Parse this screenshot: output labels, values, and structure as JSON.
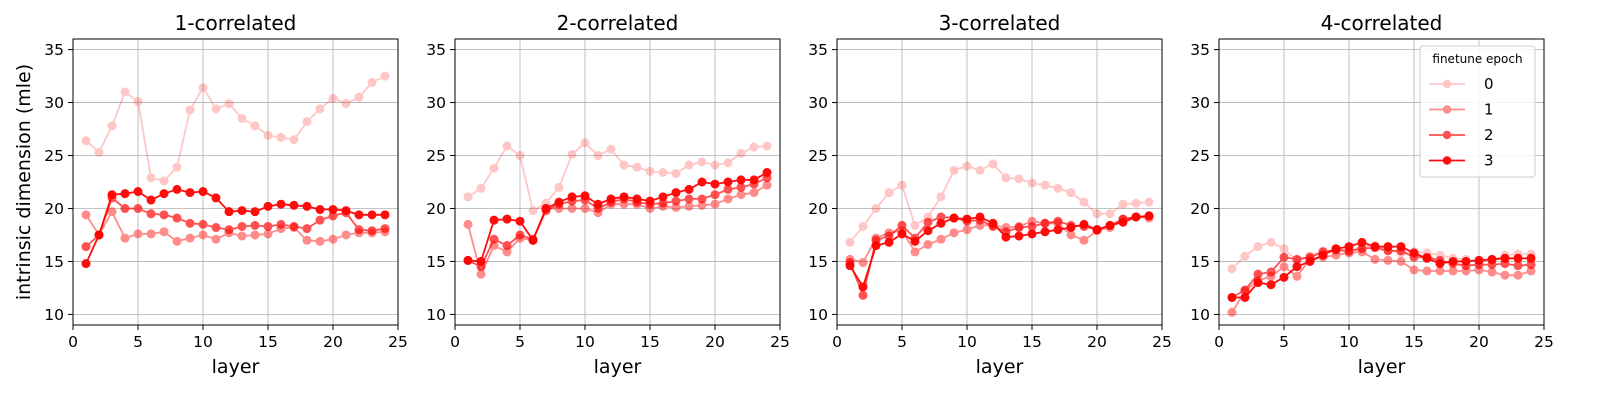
{
  "chart_data": {
    "type": "line",
    "ylabel": "intrinsic dimension (mle)",
    "xlabel": "layer",
    "xlim": [
      0,
      25
    ],
    "ylim": [
      9,
      36
    ],
    "xticks": [
      0,
      5,
      10,
      15,
      20,
      25
    ],
    "yticks": [
      10,
      15,
      20,
      25,
      30,
      35
    ],
    "grid": true,
    "color": "#ff0000",
    "series_alpha": [
      0.22,
      0.45,
      0.68,
      0.95
    ],
    "legend": {
      "title": "finetune epoch",
      "placement": "upper-right of 4-correlated panel",
      "entries": [
        "0",
        "1",
        "2",
        "3"
      ]
    },
    "x": [
      1,
      2,
      3,
      4,
      5,
      6,
      7,
      8,
      9,
      10,
      11,
      12,
      13,
      14,
      15,
      16,
      17,
      18,
      19,
      20,
      21,
      22,
      23,
      24
    ],
    "panels": [
      {
        "title": "1-correlated",
        "series": [
          {
            "name": "0",
            "values": [
              26.4,
              25.3,
              27.8,
              31.0,
              30.1,
              22.9,
              22.6,
              23.9,
              29.3,
              31.4,
              29.4,
              29.9,
              28.5,
              27.8,
              26.9,
              26.7,
              26.5,
              28.2,
              29.4,
              30.4,
              29.9,
              30.5,
              31.9,
              32.5
            ]
          },
          {
            "name": "1",
            "values": [
              19.4,
              17.5,
              19.7,
              17.2,
              17.6,
              17.6,
              17.8,
              16.9,
              17.2,
              17.5,
              17.1,
              17.7,
              17.4,
              17.5,
              17.6,
              18.1,
              18.2,
              17.0,
              16.9,
              17.1,
              17.5,
              17.7,
              17.7,
              17.8
            ]
          },
          {
            "name": "2",
            "values": [
              16.4,
              17.5,
              21.0,
              20.0,
              20.0,
              19.5,
              19.4,
              19.1,
              18.6,
              18.5,
              18.2,
              18.0,
              18.3,
              18.4,
              18.3,
              18.5,
              18.3,
              18.1,
              18.9,
              19.3,
              19.6,
              18.0,
              17.9,
              18.1
            ]
          },
          {
            "name": "3",
            "values": [
              14.8,
              17.5,
              21.3,
              21.4,
              21.6,
              20.8,
              21.4,
              21.8,
              21.5,
              21.6,
              21.0,
              19.7,
              19.8,
              19.7,
              20.2,
              20.4,
              20.3,
              20.2,
              19.9,
              19.9,
              19.8,
              19.4,
              19.4,
              19.4
            ]
          }
        ]
      },
      {
        "title": "2-correlated",
        "series": [
          {
            "name": "0",
            "values": [
              21.1,
              21.9,
              23.8,
              25.9,
              25.0,
              19.8,
              20.5,
              22.0,
              25.1,
              26.2,
              25.0,
              25.6,
              24.1,
              23.9,
              23.5,
              23.4,
              23.3,
              24.1,
              24.4,
              24.1,
              24.3,
              25.2,
              25.8,
              25.9
            ]
          },
          {
            "name": "1",
            "values": [
              18.5,
              13.8,
              16.5,
              15.9,
              17.2,
              17.0,
              20.0,
              20.0,
              20.0,
              20.0,
              19.6,
              20.4,
              20.4,
              20.4,
              20.0,
              20.2,
              20.1,
              20.2,
              20.3,
              20.4,
              20.9,
              21.3,
              21.5,
              22.2
            ]
          },
          {
            "name": "2",
            "values": [
              15.1,
              14.5,
              17.1,
              16.5,
              17.5,
              17.1,
              19.8,
              20.4,
              20.7,
              20.8,
              20.0,
              20.6,
              20.9,
              20.6,
              20.4,
              20.5,
              20.7,
              20.9,
              20.9,
              21.3,
              21.8,
              22.0,
              22.3,
              22.9
            ]
          },
          {
            "name": "3",
            "values": [
              15.1,
              15.0,
              18.9,
              19.0,
              18.8,
              17.0,
              20.0,
              20.6,
              21.1,
              21.2,
              20.4,
              20.9,
              21.1,
              20.9,
              20.7,
              21.1,
              21.5,
              21.8,
              22.5,
              22.3,
              22.5,
              22.7,
              22.7,
              23.4
            ]
          }
        ]
      },
      {
        "title": "3-correlated",
        "series": [
          {
            "name": "0",
            "values": [
              16.8,
              18.3,
              20.0,
              21.5,
              22.2,
              18.4,
              19.2,
              21.1,
              23.6,
              24.0,
              23.6,
              24.2,
              22.9,
              22.8,
              22.4,
              22.2,
              21.9,
              21.5,
              20.6,
              19.5,
              19.5,
              20.4,
              20.5,
              20.6
            ]
          },
          {
            "name": "1",
            "values": [
              15.2,
              14.9,
              17.2,
              17.7,
              17.9,
              15.9,
              16.6,
              17.1,
              17.7,
              18.0,
              18.4,
              18.4,
              18.2,
              18.3,
              18.8,
              18.6,
              18.6,
              17.5,
              17.0,
              17.9,
              18.2,
              19.0,
              19.2,
              19.1
            ]
          },
          {
            "name": "2",
            "values": [
              14.9,
              11.8,
              17.0,
              17.4,
              18.4,
              17.2,
              18.7,
              19.2,
              19.1,
              18.8,
              18.9,
              18.3,
              17.8,
              18.2,
              18.3,
              18.6,
              18.8,
              18.4,
              18.3,
              18.0,
              18.4,
              19.0,
              19.2,
              19.3
            ]
          },
          {
            "name": "3",
            "values": [
              14.6,
              12.6,
              16.5,
              16.8,
              17.6,
              16.9,
              17.9,
              18.6,
              19.1,
              19.0,
              19.2,
              18.6,
              17.3,
              17.4,
              17.6,
              17.8,
              18.0,
              18.2,
              18.5,
              18.0,
              18.4,
              18.7,
              19.2,
              19.3
            ]
          }
        ]
      },
      {
        "title": "4-correlated",
        "series": [
          {
            "name": "0",
            "values": [
              14.3,
              15.5,
              16.4,
              16.8,
              16.2,
              15.1,
              15.5,
              16.0,
              16.0,
              15.9,
              16.4,
              16.5,
              16.1,
              15.8,
              15.9,
              15.8,
              15.6,
              15.3,
              15.2,
              15.0,
              15.1,
              15.6,
              15.7,
              15.7
            ]
          },
          {
            "name": "1",
            "values": [
              10.2,
              12.2,
              13.2,
              13.6,
              14.5,
              13.6,
              15.2,
              15.4,
              15.6,
              15.8,
              15.9,
              15.2,
              15.1,
              15.0,
              14.2,
              14.1,
              14.1,
              14.1,
              14.1,
              14.2,
              14.0,
              13.7,
              13.7,
              14.1
            ]
          },
          {
            "name": "2",
            "values": [
              11.6,
              12.3,
              13.8,
              14.0,
              15.4,
              15.2,
              15.4,
              15.9,
              16.1,
              16.0,
              16.2,
              16.3,
              16.0,
              16.0,
              15.4,
              15.4,
              15.1,
              14.8,
              14.6,
              14.7,
              14.7,
              14.8,
              14.6,
              14.7
            ]
          },
          {
            "name": "3",
            "values": [
              11.6,
              11.6,
              13.0,
              12.8,
              13.5,
              14.5,
              15.0,
              15.6,
              16.2,
              16.4,
              16.8,
              16.4,
              16.4,
              16.4,
              15.8,
              15.3,
              14.8,
              15.0,
              15.0,
              15.1,
              15.2,
              15.3,
              15.3,
              15.3
            ]
          }
        ]
      }
    ]
  }
}
